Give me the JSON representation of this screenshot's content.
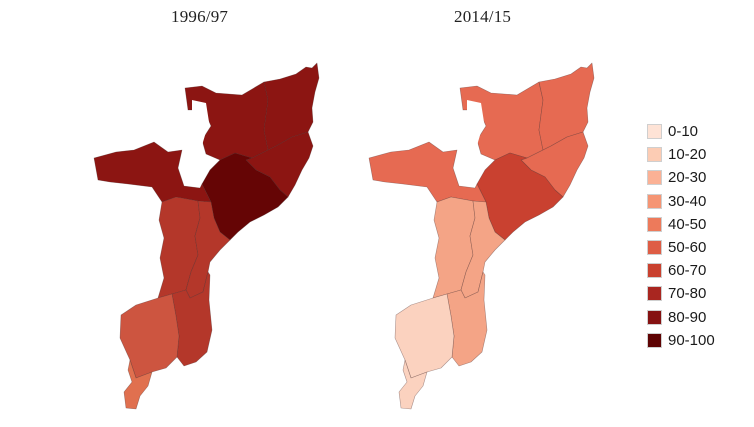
{
  "maps": [
    {
      "title": "1996/97",
      "regions": [
        {
          "name": "niassa",
          "color": "#8c1512"
        },
        {
          "name": "cabo-delgado",
          "color": "#8c1512"
        },
        {
          "name": "nampula",
          "color": "#8c1512"
        },
        {
          "name": "zambezia",
          "color": "#650505"
        },
        {
          "name": "tete",
          "color": "#8c1512"
        },
        {
          "name": "manica",
          "color": "#b4372a"
        },
        {
          "name": "sofala",
          "color": "#b4372a"
        },
        {
          "name": "inhambane",
          "color": "#b4372a"
        },
        {
          "name": "gaza",
          "color": "#cd5540"
        },
        {
          "name": "maputo",
          "color": "#e0704f"
        }
      ]
    },
    {
      "title": "2014/15",
      "regions": [
        {
          "name": "niassa",
          "color": "#e66a52"
        },
        {
          "name": "cabo-delgado",
          "color": "#e66a52"
        },
        {
          "name": "nampula",
          "color": "#e66a52"
        },
        {
          "name": "zambezia",
          "color": "#c94130"
        },
        {
          "name": "tete",
          "color": "#e66a52"
        },
        {
          "name": "manica",
          "color": "#f4a486"
        },
        {
          "name": "sofala",
          "color": "#f4a486"
        },
        {
          "name": "inhambane",
          "color": "#f4a486"
        },
        {
          "name": "gaza",
          "color": "#fbd2bf"
        },
        {
          "name": "maputo",
          "color": "#fbd2bf"
        }
      ]
    }
  ],
  "legend": [
    {
      "label": "0-10",
      "color": "#fee3d6"
    },
    {
      "label": "10-20",
      "color": "#fcccb4"
    },
    {
      "label": "20-30",
      "color": "#fbb195"
    },
    {
      "label": "30-40",
      "color": "#f59574"
    },
    {
      "label": "40-50",
      "color": "#ed7a5b"
    },
    {
      "label": "50-60",
      "color": "#de5d45"
    },
    {
      "label": "60-70",
      "color": "#c9412f"
    },
    {
      "label": "70-80",
      "color": "#a92620"
    },
    {
      "label": "80-90",
      "color": "#851212"
    },
    {
      "label": "90-100",
      "color": "#5e0303"
    }
  ]
}
